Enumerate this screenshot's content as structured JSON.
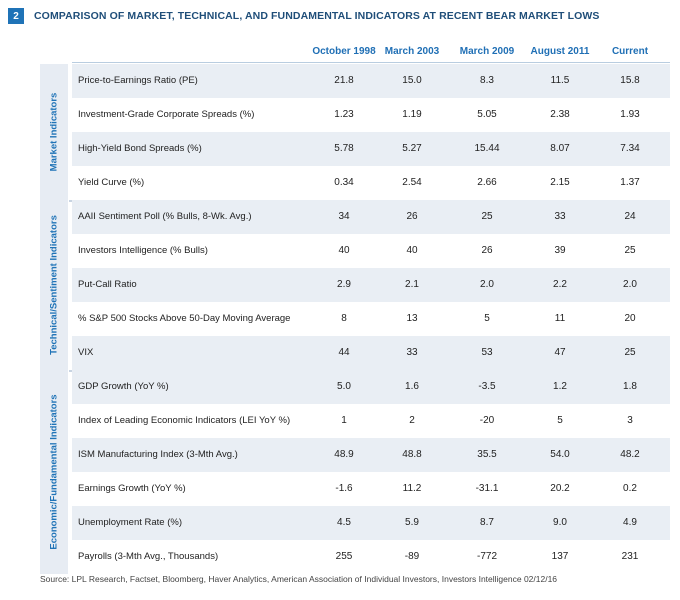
{
  "figure": {
    "number": "2",
    "title": "COMPARISON OF MARKET, TECHNICAL, AND FUNDAMENTAL INDICATORS AT RECENT BEAR MARKET LOWS"
  },
  "columns": [
    "October 1998",
    "March 2003",
    "March 2009",
    "August 2011",
    "Current"
  ],
  "groups": [
    {
      "label": "Market Indicators",
      "rows": [
        {
          "label": "Price-to-Earnings Ratio (PE)",
          "values": [
            "21.8",
            "15.0",
            "8.3",
            "11.5",
            "15.8"
          ]
        },
        {
          "label": "Investment-Grade Corporate Spreads (%)",
          "values": [
            "1.23",
            "1.19",
            "5.05",
            "2.38",
            "1.93"
          ]
        },
        {
          "label": "High-Yield Bond Spreads (%)",
          "values": [
            "5.78",
            "5.27",
            "15.44",
            "8.07",
            "7.34"
          ]
        },
        {
          "label": "Yield Curve (%)",
          "values": [
            "0.34",
            "2.54",
            "2.66",
            "2.15",
            "1.37"
          ]
        }
      ]
    },
    {
      "label": "Technical/Sentiment Indicators",
      "rows": [
        {
          "label": "AAII Sentiment Poll (% Bulls, 8-Wk. Avg.)",
          "values": [
            "34",
            "26",
            "25",
            "33",
            "24"
          ]
        },
        {
          "label": "Investors Intelligence (% Bulls)",
          "values": [
            "40",
            "40",
            "26",
            "39",
            "25"
          ]
        },
        {
          "label": "Put-Call Ratio",
          "values": [
            "2.9",
            "2.1",
            "2.0",
            "2.2",
            "2.0"
          ]
        },
        {
          "label": "% S&P 500 Stocks Above 50-Day Moving Average",
          "values": [
            "8",
            "13",
            "5",
            "11",
            "20"
          ]
        },
        {
          "label": "VIX",
          "values": [
            "44",
            "33",
            "53",
            "47",
            "25"
          ]
        }
      ]
    },
    {
      "label": "Economic/Fundamental Indicators",
      "rows": [
        {
          "label": "GDP Growth (YoY %)",
          "values": [
            "5.0",
            "1.6",
            "-3.5",
            "1.2",
            "1.8"
          ]
        },
        {
          "label": "Index of Leading Economic Indicators (LEI YoY %)",
          "values": [
            "1",
            "2",
            "-20",
            "5",
            "3"
          ]
        },
        {
          "label": "ISM Manufacturing Index (3-Mth Avg.)",
          "values": [
            "48.9",
            "48.8",
            "35.5",
            "54.0",
            "48.2"
          ]
        },
        {
          "label": "Earnings Growth (YoY %)",
          "values": [
            "-1.6",
            "11.2",
            "-31.1",
            "20.2",
            "0.2"
          ]
        },
        {
          "label": "Unemployment Rate (%)",
          "values": [
            "4.5",
            "5.9",
            "8.7",
            "9.0",
            "4.9"
          ]
        },
        {
          "label": "Payrolls (3-Mth Avg., Thousands)",
          "values": [
            "255",
            "-89",
            "-772",
            "137",
            "231"
          ]
        }
      ]
    }
  ],
  "source": "Source: LPL Research, Factset, Bloomberg, Haver Analytics, American Association of Individual Investors, Investors Intelligence  02/12/16"
}
